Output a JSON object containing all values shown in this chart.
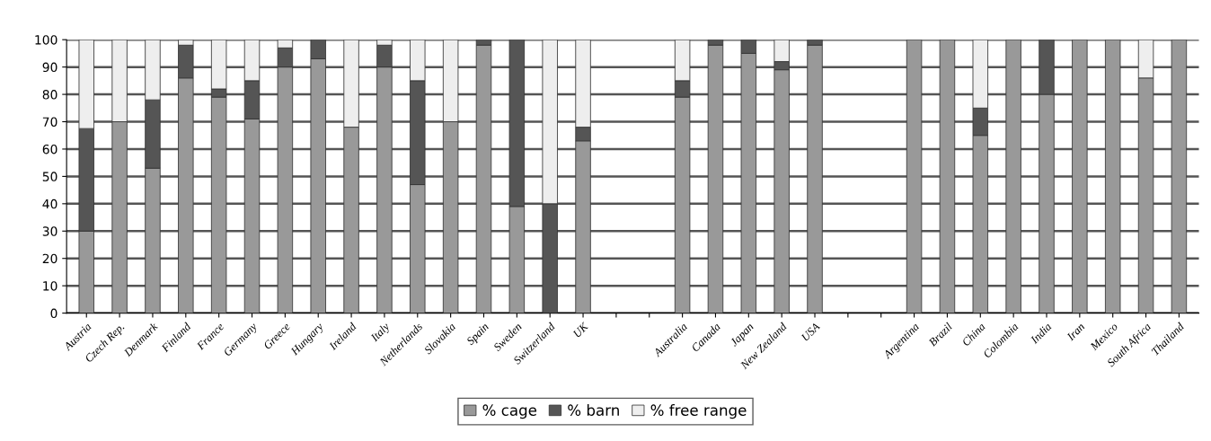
{
  "chart_data": {
    "type": "bar",
    "stacked": true,
    "categories": [
      "Austria",
      "Czech Rep.",
      "Denmark",
      "Finland",
      "France",
      "Germany",
      "Greece",
      "Hungary",
      "Ireland",
      "Italy",
      "Netherlands",
      "Slovakia",
      "Spain",
      "Sweden",
      "Switzerland",
      "UK",
      null,
      null,
      "Australia",
      "Canada",
      "Japan",
      "New Zealand",
      "USA",
      null,
      null,
      "Argentina",
      "Brazil",
      "China",
      "Colombia",
      "India",
      "Iran",
      "Mexico",
      "South Africa",
      "Thailand"
    ],
    "series": [
      {
        "name": "% cage",
        "color": "#999999",
        "values": [
          30,
          70,
          53,
          86,
          79,
          71,
          90,
          93,
          68,
          90,
          47,
          70,
          98,
          39,
          0,
          63,
          null,
          null,
          79,
          98,
          95,
          89,
          98,
          null,
          null,
          100,
          100,
          65,
          100,
          80,
          100,
          100,
          86,
          100
        ]
      },
      {
        "name": "% barn",
        "color": "#555555",
        "values": [
          37.5,
          0,
          25,
          12,
          3,
          14,
          7,
          7,
          0,
          8,
          38,
          0,
          2,
          61,
          40,
          5,
          null,
          null,
          6,
          2,
          5,
          3,
          2,
          null,
          null,
          0,
          0,
          10,
          0,
          20,
          0,
          0,
          0,
          0
        ]
      },
      {
        "name": "% free range",
        "color": "#eeeeee",
        "values": [
          32.5,
          30,
          22,
          2,
          18,
          15,
          3,
          0,
          32,
          2,
          15,
          30,
          0,
          0,
          60,
          32,
          null,
          null,
          15,
          0,
          0,
          8,
          0,
          null,
          null,
          0,
          0,
          25,
          0,
          0,
          0,
          0,
          14,
          0
        ]
      }
    ],
    "ylim": [
      0,
      100
    ],
    "yticks": [
      0,
      10,
      20,
      30,
      40,
      50,
      60,
      70,
      80,
      90,
      100
    ],
    "grid": "y",
    "legend": "bottom"
  }
}
